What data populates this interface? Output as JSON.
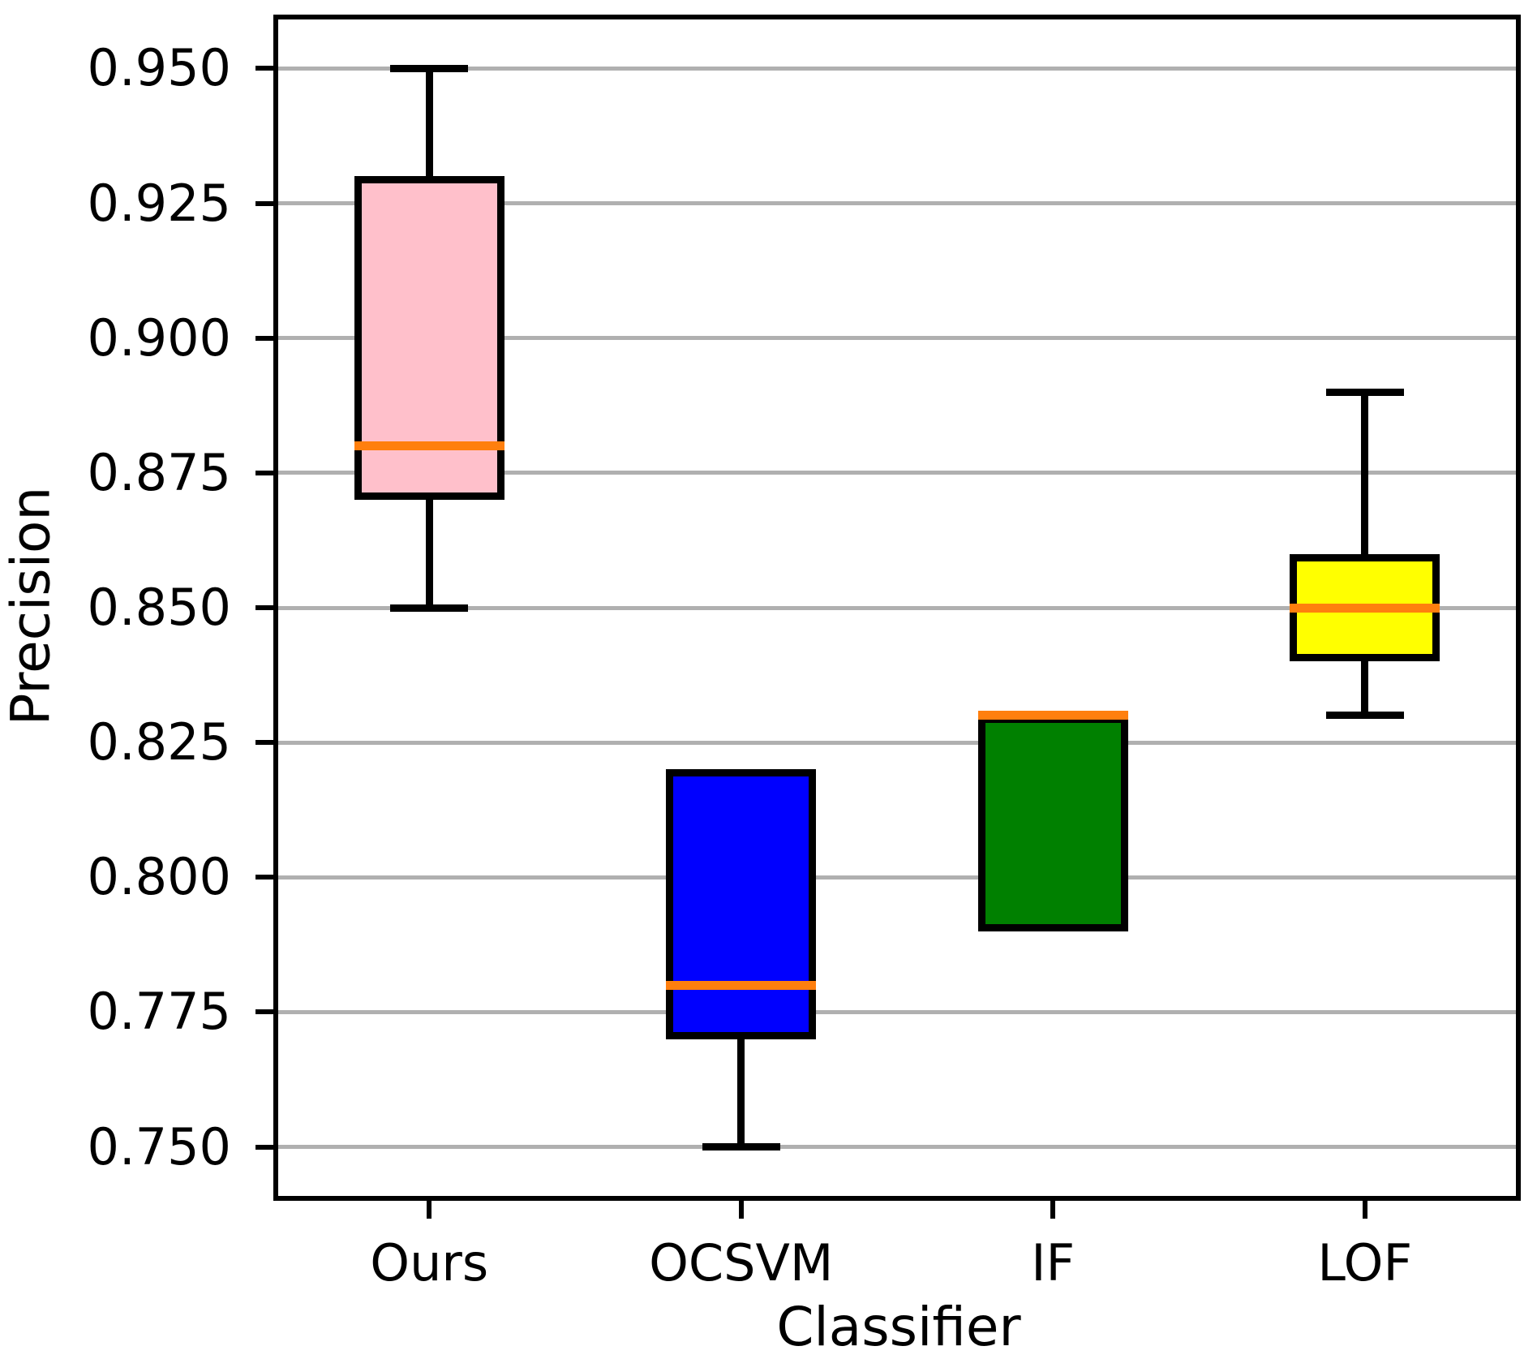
{
  "chart_data": {
    "type": "boxplot",
    "title": "",
    "xlabel": "Classifier",
    "ylabel": "Precision",
    "categories": [
      "Ours",
      "OCSVM",
      "IF",
      "LOF"
    ],
    "ylim": [
      0.74,
      0.96
    ],
    "y_ticks": [
      "0.950",
      "0.925",
      "0.900",
      "0.875",
      "0.850",
      "0.825",
      "0.800",
      "0.775",
      "0.750"
    ],
    "grid": "horizontal gridlines on",
    "legend": "none",
    "colors": {
      "median": "#ff7f0e",
      "box_edge": "#000000",
      "grid": "#b0b0b0",
      "axis": "#000000",
      "background": "#ffffff"
    },
    "series": [
      {
        "name": "Ours",
        "fill": "#ffc0cb",
        "whisker_low": 0.85,
        "q1": 0.87,
        "median": 0.88,
        "q3": 0.93,
        "whisker_high": 0.95
      },
      {
        "name": "OCSVM",
        "fill": "#0000ff",
        "whisker_low": 0.75,
        "q1": 0.77,
        "median": 0.78,
        "q3": 0.82,
        "whisker_high": 0.82
      },
      {
        "name": "IF",
        "fill": "#008000",
        "whisker_low": 0.79,
        "q1": 0.79,
        "median": 0.83,
        "q3": 0.83,
        "whisker_high": 0.83
      },
      {
        "name": "LOF",
        "fill": "#ffff00",
        "whisker_low": 0.83,
        "q1": 0.84,
        "median": 0.85,
        "q3": 0.86,
        "whisker_high": 0.89
      }
    ]
  }
}
